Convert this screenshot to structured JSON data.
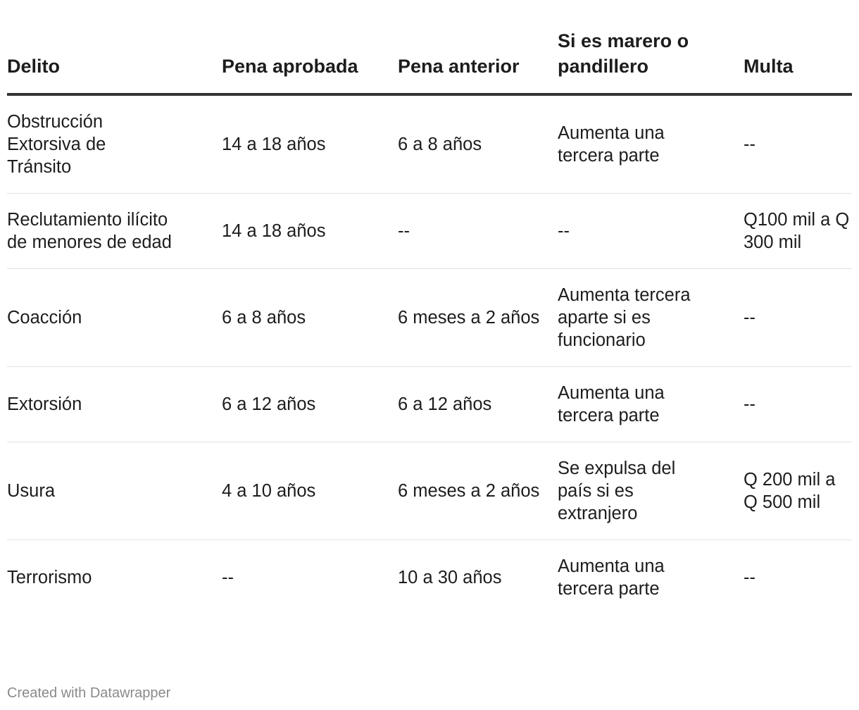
{
  "table": {
    "headers": [
      "Delito",
      "Pena aprobada",
      "Pena anterior",
      "Si es marero o pandillero",
      "Multa"
    ],
    "rows": [
      [
        "Obstrucción Extorsiva de Tránsito",
        "14 a 18 años",
        "6 a 8 años",
        "Aumenta una tercera parte",
        "--"
      ],
      [
        "Reclutamiento ilícito de menores de edad",
        "14 a 18 años",
        "--",
        "--",
        "Q100 mil a Q 300 mil"
      ],
      [
        "Coacción",
        "6 a 8 años",
        "6 meses a 2 años",
        "Aumenta tercera aparte si es funcionario",
        "--"
      ],
      [
        "Extorsión",
        "6 a 12 años",
        "6 a 12 años",
        "Aumenta una tercera parte",
        "--"
      ],
      [
        "Usura",
        "4 a 10 años",
        "6 meses a 2 años",
        "Se expulsa del país si es extranjero",
        "Q 200 mil a Q 500 mil"
      ],
      [
        "Terrorismo",
        "--",
        "10 a 30 años",
        "Aumenta una tercera parte",
        "--"
      ]
    ]
  },
  "footer": {
    "credit": "Created with Datawrapper"
  }
}
